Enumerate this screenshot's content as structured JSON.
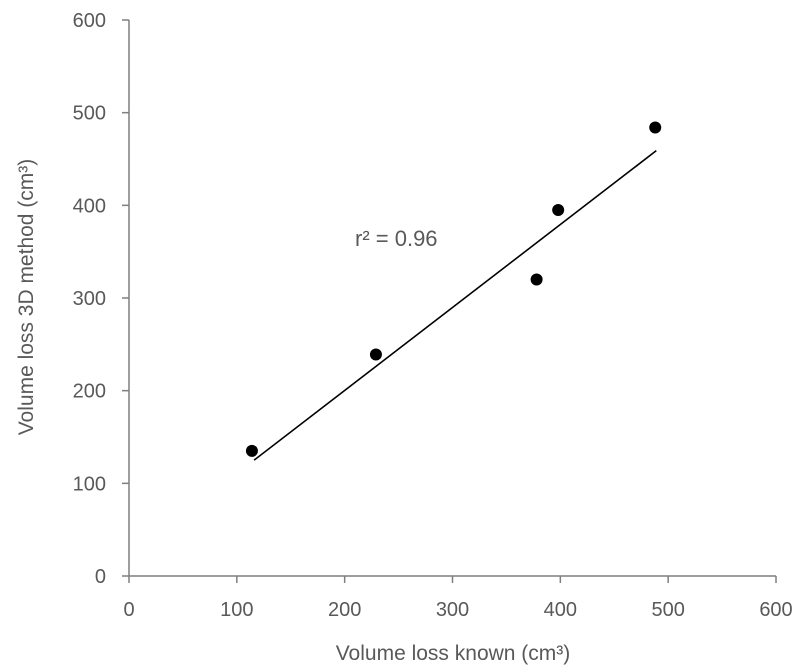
{
  "chart_data": {
    "type": "scatter",
    "xlabel": "Volume loss known (cm³)",
    "ylabel": "Volume loss 3D method (cm³)",
    "xlim": [
      0,
      600
    ],
    "ylim": [
      0,
      600
    ],
    "x_ticks": [
      "0",
      "100",
      "200",
      "300",
      "400",
      "500",
      "600"
    ],
    "y_ticks": [
      "0",
      "100",
      "200",
      "300",
      "400",
      "500",
      "600"
    ],
    "points": [
      {
        "x": 114,
        "y": 135
      },
      {
        "x": 229,
        "y": 239
      },
      {
        "x": 378,
        "y": 320
      },
      {
        "x": 398,
        "y": 395
      },
      {
        "x": 488,
        "y": 484
      }
    ],
    "trendline": {
      "x1": 116,
      "y1": 125,
      "x2": 489,
      "y2": 459
    },
    "annotation": "r² = 0.96",
    "grid": false,
    "legend": "none"
  },
  "colors": {
    "axis": "#7f7f7f",
    "point": "#000000",
    "trendline": "#000000",
    "text": "#595959"
  }
}
